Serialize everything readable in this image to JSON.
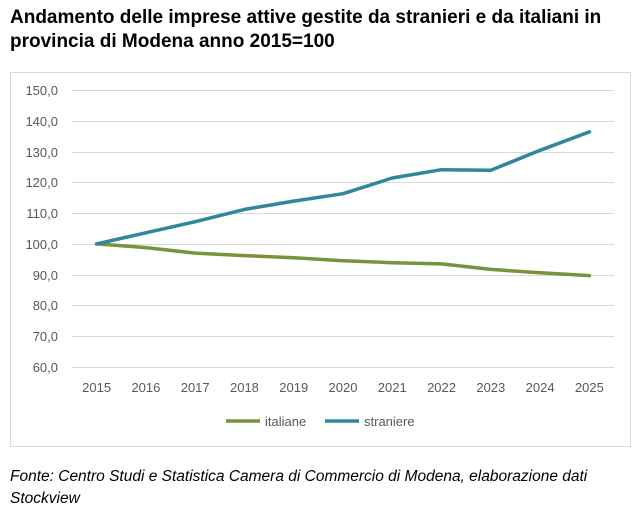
{
  "title": "Andamento delle imprese attive gestite da stranieri e da italiani in provincia di Modena anno 2015=100",
  "source": "Fonte: Centro Studi e Statistica Camera di Commercio di Modena, elaborazione dati Stockview",
  "chart_data": {
    "type": "line",
    "title": "",
    "xlabel": "",
    "ylabel": "",
    "x": [
      "2015",
      "2016",
      "2017",
      "2018",
      "2019",
      "2020",
      "2021",
      "2022",
      "2023",
      "2024",
      "2025"
    ],
    "ylim": [
      60,
      150
    ],
    "yticks": [
      "60,0",
      "70,0",
      "80,0",
      "90,0",
      "100,0",
      "110,0",
      "120,0",
      "130,0",
      "140,0",
      "150,0"
    ],
    "grid": true,
    "legend": "bottom",
    "series": [
      {
        "name": "italiane",
        "color": "#77933c",
        "values": [
          100.0,
          98.8,
          97.0,
          96.2,
          95.5,
          94.5,
          93.9,
          93.5,
          91.7,
          90.6,
          89.7
        ]
      },
      {
        "name": "straniere",
        "color": "#31859c",
        "values": [
          100.0,
          103.6,
          107.2,
          111.2,
          113.9,
          116.3,
          121.4,
          124.1,
          123.9,
          130.4,
          136.4
        ]
      }
    ]
  }
}
